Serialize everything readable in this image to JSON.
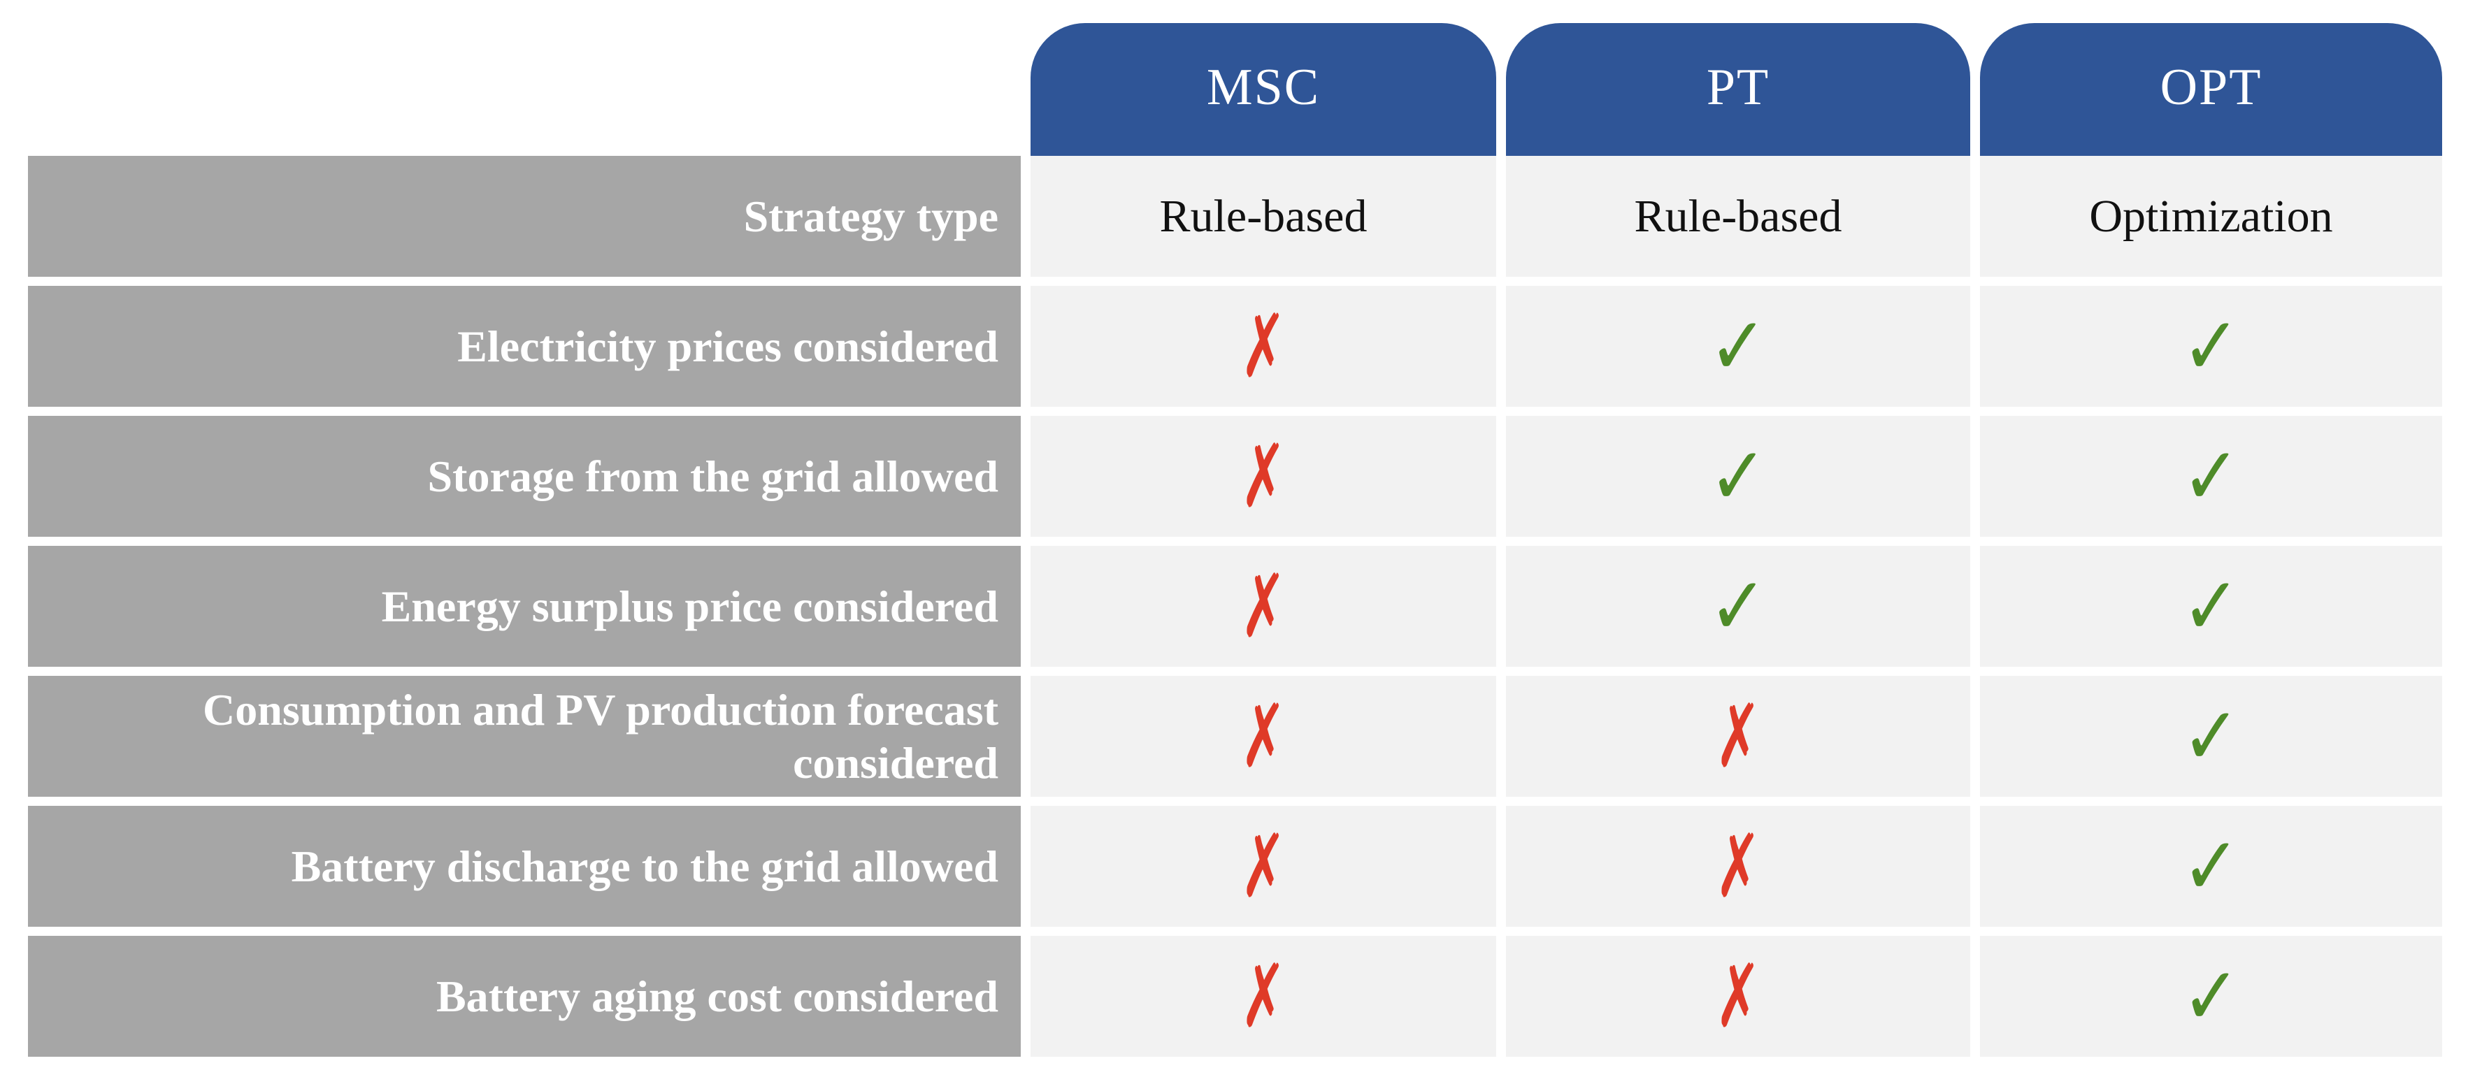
{
  "colors": {
    "header_bg": "#2F5597",
    "header_text": "#FFFFFF",
    "label_bg": "#A6A6A6",
    "label_text": "#FFFFFF",
    "cell_bg": "#F2F2F2",
    "cell_text": "#111111",
    "cross": "#DF3A28",
    "check": "#4E8B29",
    "page_bg": "#FFFFFF"
  },
  "columns": [
    "MSC",
    "PT",
    "OPT"
  ],
  "rows": [
    {
      "label": "Strategy type",
      "cells": [
        {
          "kind": "text",
          "text": "Rule-based"
        },
        {
          "kind": "text",
          "text": "Rule-based"
        },
        {
          "kind": "text",
          "text": "Optimization"
        }
      ]
    },
    {
      "label": "Electricity prices considered",
      "cells": [
        {
          "kind": "cross",
          "glyph": "✗"
        },
        {
          "kind": "check",
          "glyph": "✓"
        },
        {
          "kind": "check",
          "glyph": "✓"
        }
      ]
    },
    {
      "label": "Storage from the grid allowed",
      "cells": [
        {
          "kind": "cross",
          "glyph": "✗"
        },
        {
          "kind": "check",
          "glyph": "✓"
        },
        {
          "kind": "check",
          "glyph": "✓"
        }
      ]
    },
    {
      "label": "Energy surplus price considered",
      "cells": [
        {
          "kind": "cross",
          "glyph": "✗"
        },
        {
          "kind": "check",
          "glyph": "✓"
        },
        {
          "kind": "check",
          "glyph": "✓"
        }
      ]
    },
    {
      "label": "Consumption and PV production forecast considered",
      "cells": [
        {
          "kind": "cross",
          "glyph": "✗"
        },
        {
          "kind": "cross",
          "glyph": "✗"
        },
        {
          "kind": "check",
          "glyph": "✓"
        }
      ]
    },
    {
      "label": "Battery discharge to the grid allowed",
      "cells": [
        {
          "kind": "cross",
          "glyph": "✗"
        },
        {
          "kind": "cross",
          "glyph": "✗"
        },
        {
          "kind": "check",
          "glyph": "✓"
        }
      ]
    },
    {
      "label": "Battery aging cost considered",
      "cells": [
        {
          "kind": "cross",
          "glyph": "✗"
        },
        {
          "kind": "cross",
          "glyph": "✗"
        },
        {
          "kind": "check",
          "glyph": "✓"
        }
      ]
    }
  ],
  "chart_data": {
    "type": "table",
    "columns": [
      "",
      "MSC",
      "PT",
      "OPT"
    ],
    "rows": [
      [
        "Strategy type",
        "Rule-based",
        "Rule-based",
        "Optimization"
      ],
      [
        "Electricity prices considered",
        "no",
        "yes",
        "yes"
      ],
      [
        "Storage from the grid allowed",
        "no",
        "yes",
        "yes"
      ],
      [
        "Energy surplus price considered",
        "no",
        "yes",
        "yes"
      ],
      [
        "Consumption and PV production forecast considered",
        "no",
        "no",
        "yes"
      ],
      [
        "Battery discharge to the grid allowed",
        "no",
        "no",
        "yes"
      ],
      [
        "Battery aging cost considered",
        "no",
        "no",
        "yes"
      ]
    ],
    "legend": {
      "check_means": "feature present / allowed",
      "cross_means": "feature absent / not allowed"
    },
    "layout": {
      "header_style": "blue rounded tabs",
      "label_column": "gray, right-aligned, bold white text"
    }
  }
}
